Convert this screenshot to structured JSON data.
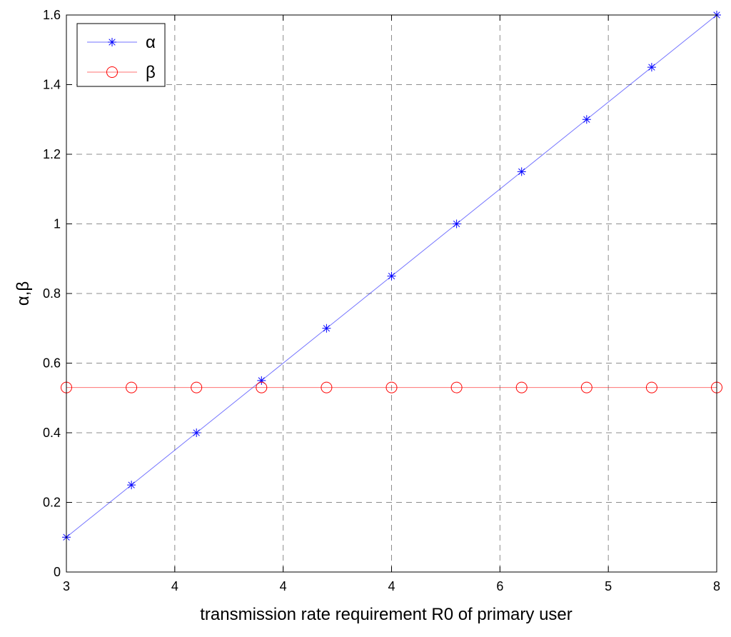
{
  "chart_data": {
    "type": "line",
    "title": "",
    "xlabel": "transmission rate requirement R0 of primary user",
    "ylabel": "α,β",
    "xlim": [
      0,
      10
    ],
    "ylim": [
      0,
      1.6
    ],
    "x_tick_labels": [
      "3",
      "4",
      "4",
      "4",
      "6",
      "5",
      "8"
    ],
    "y_ticks": [
      0,
      0.2,
      0.4,
      0.6,
      0.8,
      1,
      1.2,
      1.4,
      1.6
    ],
    "y_tick_labels": [
      "0",
      "0.2",
      "0.4",
      "0.6",
      "0.8",
      "1",
      "1.2",
      "1.4",
      "1.6"
    ],
    "grid": true,
    "legend_position": "top-left",
    "x": [
      0,
      1,
      2,
      3,
      4,
      5,
      6,
      7,
      8,
      9,
      10
    ],
    "series": [
      {
        "name": "α",
        "marker": "asterisk",
        "color": "#0000ff",
        "values": [
          0.1,
          0.25,
          0.4,
          0.55,
          0.7,
          0.85,
          1.0,
          1.15,
          1.3,
          1.45,
          1.6
        ]
      },
      {
        "name": "β",
        "marker": "circle",
        "color": "#ff0000",
        "values": [
          0.53,
          0.53,
          0.53,
          0.53,
          0.53,
          0.53,
          0.53,
          0.53,
          0.53,
          0.53,
          0.53
        ]
      }
    ]
  }
}
